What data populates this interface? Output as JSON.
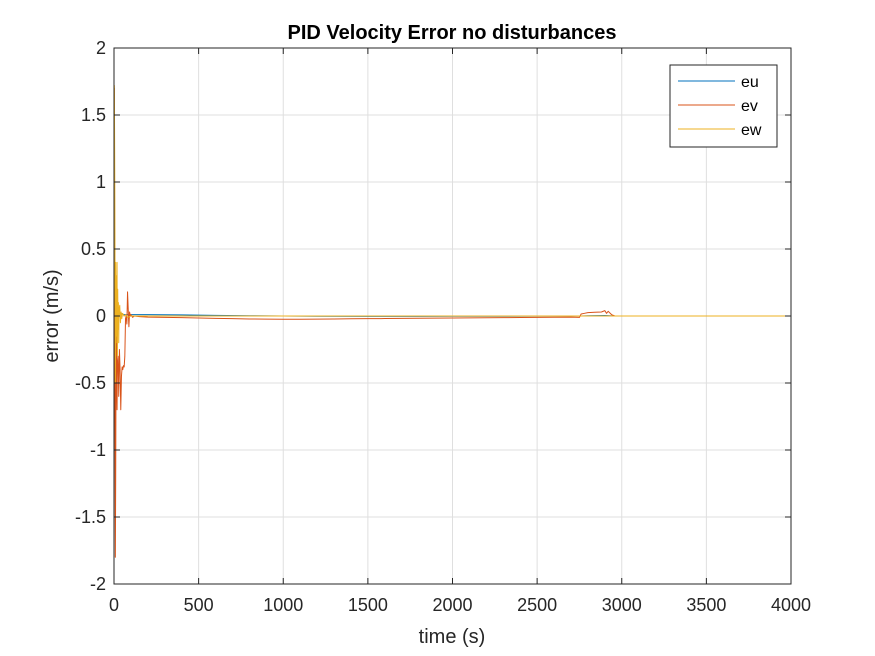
{
  "chart_data": {
    "type": "line",
    "title": "PID Velocity Error no disturbances",
    "xlabel": "time (s)",
    "ylabel": "error (m/s)",
    "xlim": [
      0,
      4000
    ],
    "ylim": [
      -2,
      2
    ],
    "xticks": [
      0,
      500,
      1000,
      1500,
      2000,
      2500,
      3000,
      3500,
      4000
    ],
    "yticks": [
      -2,
      -1.5,
      -1,
      -0.5,
      0,
      0.5,
      1,
      1.5,
      2
    ],
    "xtick_labels": [
      "0",
      "500",
      "1000",
      "1500",
      "2000",
      "2500",
      "3000",
      "3500",
      "4000"
    ],
    "ytick_labels": [
      "-2",
      "-1.5",
      "-1",
      "-0.5",
      "0",
      "0.5",
      "1",
      "1.5",
      "2"
    ],
    "grid": true,
    "legend": {
      "position": "top-right",
      "entries": [
        "eu",
        "ev",
        "ew"
      ]
    },
    "colors": {
      "eu": "#0072BD",
      "ev": "#D95319",
      "ew": "#EDB120"
    },
    "series": [
      {
        "name": "eu",
        "x": [
          0,
          3,
          6,
          10,
          14,
          20,
          28,
          40,
          60,
          80,
          100,
          150,
          200,
          400,
          600,
          800,
          1000,
          1200,
          1500,
          1800,
          2000,
          2200,
          2500,
          2700,
          2760,
          2800,
          2900,
          2930,
          2950,
          3000,
          3500,
          4000
        ],
        "y": [
          0,
          0.3,
          -0.2,
          0.1,
          -0.05,
          0.02,
          0.01,
          0.02,
          0.01,
          0.01,
          0.01,
          0.01,
          0.01,
          0.008,
          0.005,
          0.002,
          0,
          -0.002,
          -0.003,
          -0.003,
          -0.002,
          -0.002,
          -0.001,
          -0.001,
          0,
          0.002,
          0.004,
          0.002,
          0.001,
          0,
          0,
          0
        ]
      },
      {
        "name": "ev",
        "x": [
          0,
          2,
          4,
          6,
          8,
          10,
          12,
          14,
          16,
          18,
          20,
          24,
          28,
          32,
          36,
          40,
          44,
          48,
          52,
          56,
          60,
          64,
          68,
          72,
          76,
          80,
          84,
          88,
          92,
          96,
          100,
          110,
          120,
          150,
          200,
          300,
          400,
          500,
          600,
          700,
          800,
          900,
          1000,
          1100,
          1200,
          1300,
          1400,
          1500,
          1600,
          1700,
          1800,
          1900,
          2000,
          2100,
          2200,
          2300,
          2400,
          2500,
          2600,
          2700,
          2750,
          2760,
          2780,
          2800,
          2840,
          2880,
          2900,
          2910,
          2920,
          2940,
          2960,
          3000,
          3500,
          4000
        ],
        "y": [
          0,
          1.7,
          0.5,
          -0.8,
          -1.8,
          -1.2,
          -0.4,
          0.2,
          -0.5,
          -0.7,
          -0.35,
          -0.3,
          -0.6,
          -0.25,
          -0.4,
          -0.7,
          -0.45,
          -0.38,
          -0.4,
          -0.37,
          -0.38,
          -0.3,
          -0.02,
          0.0,
          -0.06,
          0.18,
          0.05,
          -0.08,
          0.03,
          0.0,
          0.01,
          -0.01,
          0.0,
          -0.005,
          -0.008,
          -0.01,
          -0.012,
          -0.015,
          -0.018,
          -0.02,
          -0.022,
          -0.023,
          -0.024,
          -0.024,
          -0.023,
          -0.022,
          -0.021,
          -0.02,
          -0.019,
          -0.018,
          -0.017,
          -0.016,
          -0.015,
          -0.014,
          -0.013,
          -0.012,
          -0.011,
          -0.01,
          -0.009,
          -0.008,
          -0.01,
          0.015,
          0.02,
          0.025,
          0.028,
          0.03,
          0.04,
          0.02,
          0.035,
          0.01,
          0.0,
          0.0,
          0.0,
          0.0
        ]
      },
      {
        "name": "ew",
        "x": [
          0,
          2,
          4,
          6,
          8,
          10,
          12,
          14,
          16,
          18,
          20,
          22,
          24,
          26,
          28,
          30,
          34,
          38,
          42,
          46,
          50,
          60,
          70,
          80,
          100,
          150,
          200,
          500,
          1000,
          1500,
          2000,
          2500,
          2800,
          3000,
          3500,
          4000
        ],
        "y": [
          0,
          1.72,
          1.2,
          0.3,
          -0.5,
          0.4,
          -0.2,
          0.3,
          -0.15,
          0.4,
          -0.3,
          0.2,
          -0.1,
          0.1,
          -0.2,
          0.05,
          0.08,
          -0.05,
          0.03,
          -0.02,
          0.02,
          0.0,
          0.01,
          -0.01,
          0.0,
          0.0,
          0.0,
          0.0,
          0.0,
          0.0,
          0.0,
          0.0,
          0.0,
          0.0,
          0.0,
          0.0
        ]
      }
    ]
  }
}
